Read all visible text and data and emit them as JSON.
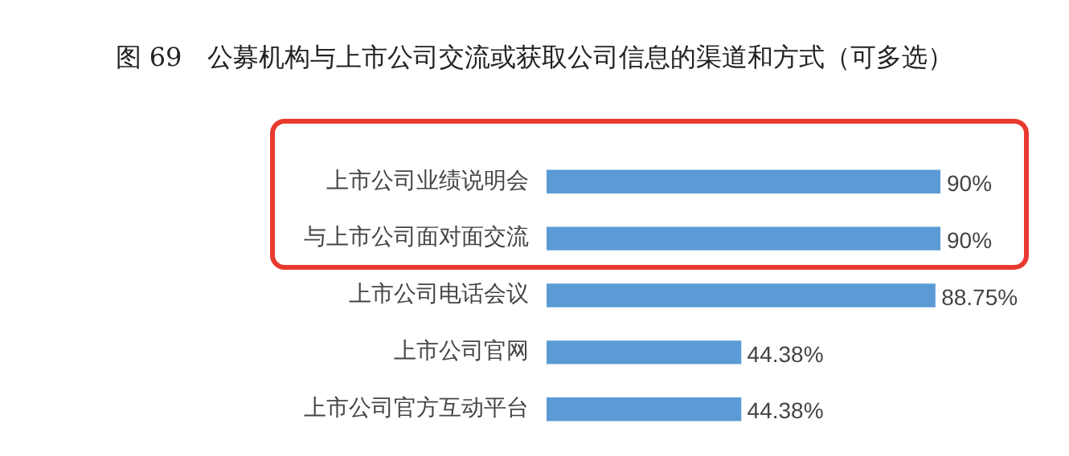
{
  "chart_data": {
    "type": "bar",
    "orientation": "horizontal",
    "title": "图 69　公募机构与上市公司交流或获取公司信息的渠道和方式（可多选）",
    "categories": [
      "上市公司业绩说明会",
      "与上市公司面对面交流",
      "上市公司电话会议",
      "上市公司官网",
      "上市公司官方互动平台"
    ],
    "values": [
      90,
      90,
      88.75,
      44.38,
      44.38
    ],
    "value_labels": [
      "90%",
      "90%",
      "88.75%",
      "44.38%",
      "44.38%"
    ],
    "color": "#5b9bd5",
    "legend": false
  }
}
